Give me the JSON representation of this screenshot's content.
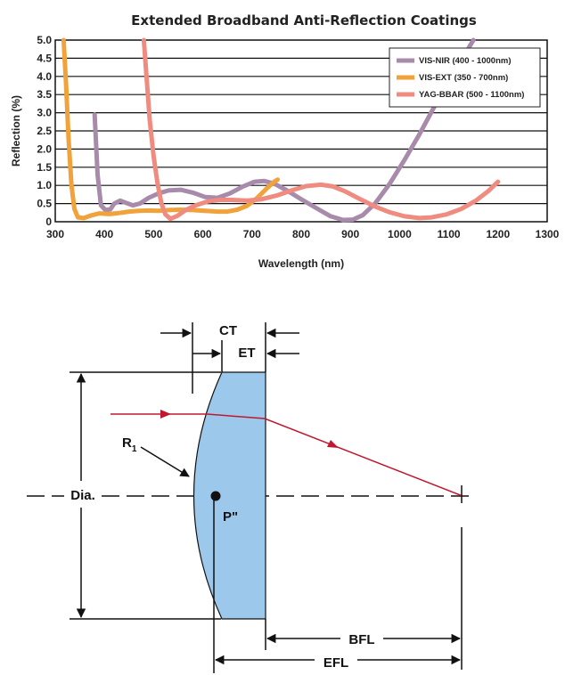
{
  "chart_data": {
    "type": "line",
    "title": "Extended Broadband Anti-Reflection Coatings",
    "xlabel": "Wavelength (nm)",
    "ylabel": "Reflection (%)",
    "xlim": [
      300,
      1300
    ],
    "ylim": [
      0,
      5
    ],
    "x_ticks": [
      "300",
      "400",
      "500",
      "600",
      "700",
      "800",
      "900",
      "1000",
      "1100",
      "1200",
      "1300"
    ],
    "y_ticks": [
      "0",
      "0.5",
      "1.0",
      "1.5",
      "2.0",
      "2.5",
      "3.0",
      "3.5",
      "4.0",
      "4.5",
      "5.0"
    ],
    "grid": "horizontal",
    "legend_position": "top-right",
    "series": [
      {
        "name": "VIS-NIR (400 - 1000nm)",
        "color": "#a88aaa",
        "points": [
          [
            380,
            2.95
          ],
          [
            386,
            1.3
          ],
          [
            393,
            0.45
          ],
          [
            402,
            0.32
          ],
          [
            412,
            0.34
          ],
          [
            420,
            0.5
          ],
          [
            432,
            0.58
          ],
          [
            444,
            0.52
          ],
          [
            458,
            0.45
          ],
          [
            472,
            0.5
          ],
          [
            490,
            0.66
          ],
          [
            510,
            0.78
          ],
          [
            530,
            0.86
          ],
          [
            555,
            0.88
          ],
          [
            580,
            0.8
          ],
          [
            605,
            0.68
          ],
          [
            630,
            0.66
          ],
          [
            655,
            0.78
          ],
          [
            680,
            0.96
          ],
          [
            705,
            1.1
          ],
          [
            725,
            1.12
          ],
          [
            745,
            1.05
          ],
          [
            770,
            0.87
          ],
          [
            800,
            0.62
          ],
          [
            830,
            0.38
          ],
          [
            860,
            0.15
          ],
          [
            885,
            0.05
          ],
          [
            905,
            0.06
          ],
          [
            925,
            0.18
          ],
          [
            950,
            0.5
          ],
          [
            980,
            1.05
          ],
          [
            1010,
            1.7
          ],
          [
            1040,
            2.4
          ],
          [
            1070,
            3.15
          ],
          [
            1100,
            3.85
          ],
          [
            1130,
            4.55
          ],
          [
            1150,
            5.0
          ]
        ]
      },
      {
        "name": "VIS-EXT (350 - 700nm)",
        "color": "#f2a23a",
        "points": [
          [
            317,
            5.0
          ],
          [
            322,
            3.8
          ],
          [
            327,
            2.3
          ],
          [
            333,
            1.0
          ],
          [
            339,
            0.35
          ],
          [
            346,
            0.12
          ],
          [
            358,
            0.1
          ],
          [
            372,
            0.17
          ],
          [
            390,
            0.23
          ],
          [
            410,
            0.21
          ],
          [
            430,
            0.24
          ],
          [
            450,
            0.28
          ],
          [
            470,
            0.3
          ],
          [
            490,
            0.31
          ],
          [
            510,
            0.3
          ],
          [
            530,
            0.32
          ],
          [
            555,
            0.33
          ],
          [
            580,
            0.32
          ],
          [
            605,
            0.3
          ],
          [
            630,
            0.28
          ],
          [
            650,
            0.28
          ],
          [
            670,
            0.33
          ],
          [
            690,
            0.44
          ],
          [
            710,
            0.65
          ],
          [
            730,
            0.92
          ],
          [
            745,
            1.1
          ],
          [
            752,
            1.16
          ]
        ]
      },
      {
        "name": "YAG-BBAR (500 - 1100nm)",
        "color": "#f08b80",
        "points": [
          [
            480,
            5.0
          ],
          [
            486,
            3.9
          ],
          [
            492,
            2.8
          ],
          [
            500,
            1.8
          ],
          [
            508,
            1.05
          ],
          [
            516,
            0.5
          ],
          [
            524,
            0.2
          ],
          [
            534,
            0.08
          ],
          [
            548,
            0.16
          ],
          [
            565,
            0.32
          ],
          [
            585,
            0.45
          ],
          [
            610,
            0.56
          ],
          [
            635,
            0.6
          ],
          [
            660,
            0.6
          ],
          [
            690,
            0.58
          ],
          [
            720,
            0.62
          ],
          [
            750,
            0.72
          ],
          [
            780,
            0.86
          ],
          [
            810,
            0.98
          ],
          [
            840,
            1.02
          ],
          [
            865,
            0.97
          ],
          [
            890,
            0.83
          ],
          [
            920,
            0.62
          ],
          [
            950,
            0.42
          ],
          [
            980,
            0.26
          ],
          [
            1010,
            0.15
          ],
          [
            1040,
            0.1
          ],
          [
            1065,
            0.12
          ],
          [
            1095,
            0.2
          ],
          [
            1125,
            0.35
          ],
          [
            1155,
            0.58
          ],
          [
            1180,
            0.84
          ],
          [
            1200,
            1.1
          ]
        ]
      }
    ]
  },
  "diagram": {
    "labels": {
      "ct": "CT",
      "et": "ET",
      "r": "R",
      "r_sub": "1",
      "dia": "Dia.",
      "p": "P\"",
      "bfl": "BFL",
      "efl": "EFL"
    },
    "lens_fill": "#9cc8ec",
    "ray_color": "#c01830"
  }
}
